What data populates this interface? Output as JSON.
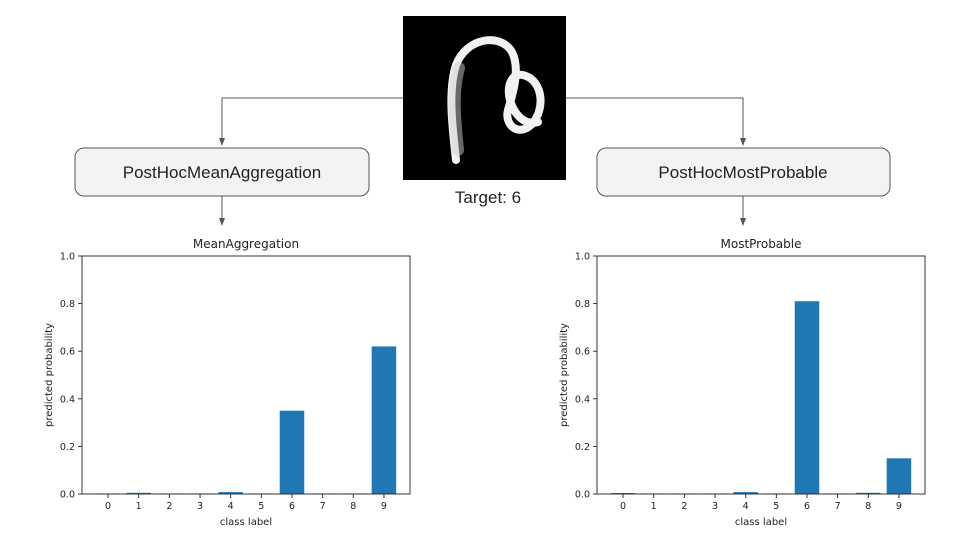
{
  "target_label": "Target: 6",
  "boxes": {
    "left": "PostHocMeanAggregation",
    "right": "PostHocMostProbable"
  },
  "colors": {
    "bar": "#1f77b4",
    "box_fill": "#f3f3f3",
    "box_stroke": "#555555",
    "arrow": "#555555"
  },
  "chart_data": [
    {
      "type": "bar",
      "title": "MeanAggregation",
      "xlabel": "class label",
      "ylabel": "predicted probability",
      "categories": [
        "0",
        "1",
        "2",
        "3",
        "4",
        "5",
        "6",
        "7",
        "8",
        "9"
      ],
      "values": [
        0.002,
        0.005,
        0.002,
        0.002,
        0.008,
        0.002,
        0.35,
        0.002,
        0.002,
        0.62
      ],
      "ylim": [
        0,
        1.0
      ],
      "yticks": [
        "0.0",
        "0.2",
        "0.4",
        "0.6",
        "0.8",
        "1.0"
      ]
    },
    {
      "type": "bar",
      "title": "MostProbable",
      "xlabel": "class label",
      "ylabel": "predicted probability",
      "categories": [
        "0",
        "1",
        "2",
        "3",
        "4",
        "5",
        "6",
        "7",
        "8",
        "9"
      ],
      "values": [
        0.004,
        0.002,
        0.002,
        0.002,
        0.008,
        0.002,
        0.81,
        0.002,
        0.005,
        0.15
      ],
      "ylim": [
        0,
        1.0
      ],
      "yticks": [
        "0.0",
        "0.2",
        "0.4",
        "0.6",
        "0.8",
        "1.0"
      ]
    }
  ]
}
